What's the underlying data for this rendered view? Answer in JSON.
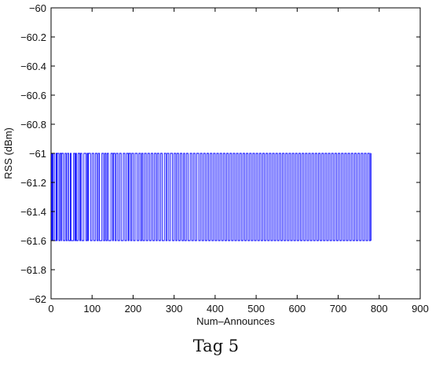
{
  "caption": "Tag 5",
  "chart_data": {
    "type": "line",
    "title": "",
    "xlabel": "Num–Announces",
    "ylabel": "RSS (dBm)",
    "xlim": [
      0,
      900
    ],
    "ylim": [
      -62,
      -60
    ],
    "xticks": [
      0,
      100,
      200,
      300,
      400,
      500,
      600,
      700,
      800,
      900
    ],
    "yticks": [
      -60,
      -60.2,
      -60.4,
      -60.6,
      -60.8,
      -61,
      -61.2,
      -61.4,
      -61.6,
      -61.8,
      -62
    ],
    "ytick_labels": [
      "−60",
      "−60.2",
      "−60.4",
      "−60.6",
      "−60.8",
      "−61",
      "−61.2",
      "−61.4",
      "−61.6",
      "−61.8",
      "−62"
    ],
    "xtick_labels": [
      "0",
      "100",
      "200",
      "300",
      "400",
      "500",
      "600",
      "700",
      "800",
      "900"
    ],
    "grid": false,
    "series": [
      {
        "color": "#0000ff",
        "x_range": [
          1,
          780
        ],
        "levels": [
          -61,
          -61.6
        ],
        "switch_points": [
          3,
          5,
          8,
          12,
          14,
          15,
          19,
          22,
          25,
          26,
          30,
          34,
          37,
          40,
          43,
          47,
          49,
          55,
          58,
          60,
          62,
          66,
          70,
          72,
          75,
          80,
          85,
          88,
          90,
          91,
          96,
          100,
          104,
          108,
          112,
          115,
          118,
          124,
          128,
          131,
          134,
          137,
          140,
          146,
          150,
          152,
          156,
          159,
          163,
          167,
          171,
          176,
          180,
          184,
          188,
          190,
          194,
          197,
          201,
          205,
          210,
          214,
          218,
          221,
          224,
          228,
          232,
          236,
          240,
          244,
          248,
          252,
          256,
          259,
          263,
          267,
          271,
          276,
          280,
          283,
          287,
          291,
          296,
          300,
          304,
          307,
          311,
          315,
          319,
          323,
          326,
          330,
          334,
          339,
          343,
          347,
          351,
          355,
          360,
          364,
          368,
          372,
          376,
          380,
          384,
          388,
          392,
          396,
          400,
          404,
          408,
          412,
          416,
          420,
          424,
          428,
          432,
          436,
          440,
          444,
          448,
          452,
          456,
          460,
          464,
          468,
          472,
          476,
          480,
          484,
          488,
          492,
          496,
          500,
          504,
          508,
          512,
          516,
          520,
          524,
          528,
          532,
          536,
          540,
          544,
          548,
          552,
          556,
          560,
          564,
          568,
          572,
          576,
          580,
          584,
          588,
          592,
          596,
          600,
          604,
          608,
          612,
          616,
          620,
          624,
          628,
          632,
          636,
          640,
          644,
          648,
          652,
          656,
          660,
          664,
          668,
          672,
          676,
          680,
          684,
          688,
          692,
          696,
          700,
          704,
          708,
          712,
          716,
          720,
          724,
          728,
          732,
          736,
          740,
          744,
          748,
          752,
          756,
          760,
          764,
          768,
          772,
          776,
          779
        ]
      }
    ]
  }
}
